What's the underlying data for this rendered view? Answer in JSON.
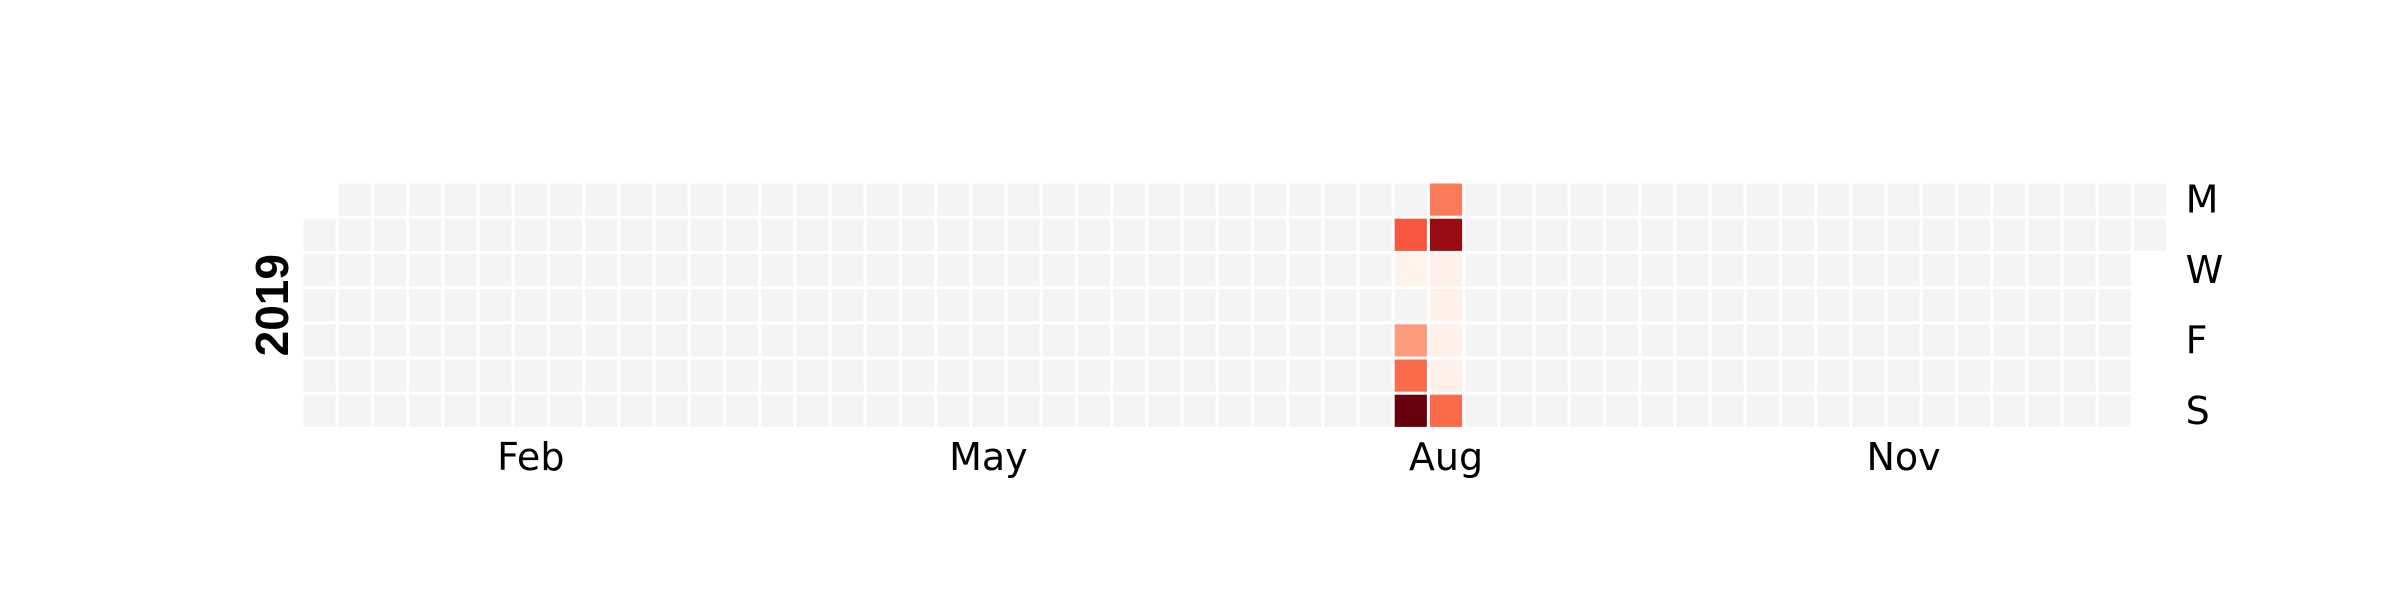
{
  "chart_data": {
    "type": "heatmap",
    "title": "",
    "year_label": "2019",
    "x_tick_labels": [
      "Feb",
      "May",
      "Aug",
      "Nov"
    ],
    "y_tick_labels": [
      "M",
      "W",
      "F",
      "S"
    ],
    "y_tick_days": [
      "Mon",
      "Wed",
      "Fri",
      "Sun"
    ],
    "date_range": [
      "2019-01-01",
      "2019-12-31"
    ],
    "colormap": "Reds",
    "empty_color": "#f4f4f4",
    "legend": false,
    "values": [
      {
        "date": "2019-08-06",
        "value": 0.55
      },
      {
        "date": "2019-08-07",
        "value": 0.02
      },
      {
        "date": "2019-08-09",
        "value": 0.35
      },
      {
        "date": "2019-08-10",
        "value": 0.5
      },
      {
        "date": "2019-08-11",
        "value": 1.0
      },
      {
        "date": "2019-08-12",
        "value": 0.45
      },
      {
        "date": "2019-08-13",
        "value": 0.9
      },
      {
        "date": "2019-08-14",
        "value": 0.03
      },
      {
        "date": "2019-08-15",
        "value": 0.03
      },
      {
        "date": "2019-08-16",
        "value": 0.03
      },
      {
        "date": "2019-08-17",
        "value": 0.03
      },
      {
        "date": "2019-08-18",
        "value": 0.5
      }
    ]
  }
}
